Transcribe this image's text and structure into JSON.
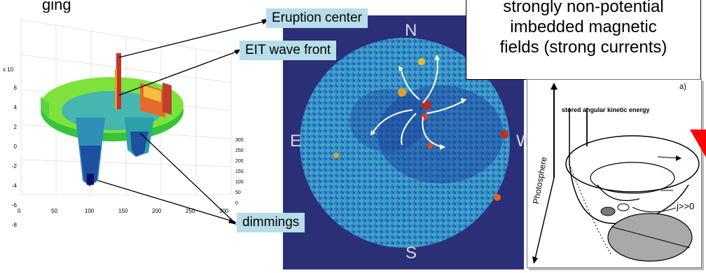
{
  "top_left_fragment": "ging",
  "plot3d": {
    "y_multiplier_label": "x 10",
    "y_ticks": [
      "6",
      "4",
      "2",
      "0",
      "-2",
      "-4",
      "-6",
      "-8"
    ],
    "x_ticks": [
      "0",
      "50",
      "100",
      "150",
      "200",
      "250",
      "300"
    ],
    "z_ticks": [
      "300",
      "250",
      "200",
      "150",
      "100",
      "50",
      "0"
    ]
  },
  "callouts": {
    "eruption_center": "Eruption center",
    "eit_wave_front": "EIT wave front",
    "dimmings": "dimmings"
  },
  "compass": {
    "n": "N",
    "e": "E",
    "w": "W",
    "s": "S"
  },
  "note_box": {
    "line1": "strongly non-potential",
    "line2": "imbedded magnetic",
    "line3": "fields (strong currents)"
  },
  "sketch": {
    "panel_label": "a)",
    "stored_energy": "stored angular kinetic energy",
    "photosphere": "Photosphere",
    "current_label": "j>>0"
  },
  "colors": {
    "sun_bg": "#2b2f78",
    "callout_bg": "#b7dde8",
    "arrow_red": "#ff0000"
  }
}
